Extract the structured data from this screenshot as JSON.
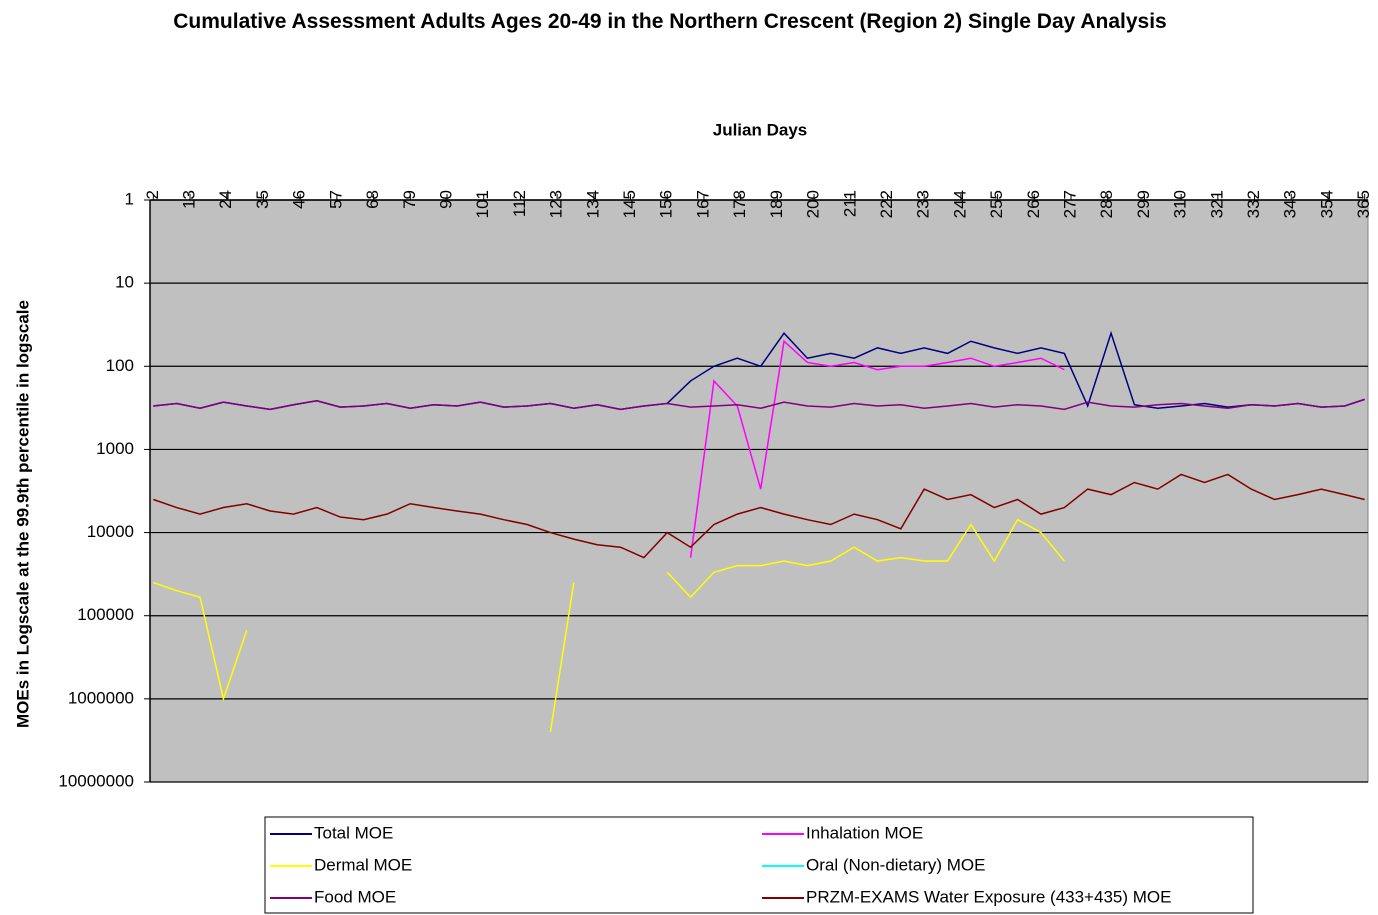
{
  "chart_data": {
    "type": "line",
    "title": "Cumulative Assessment Adults Ages 20-49 in the Northern Crescent (Region 2) Single Day Analysis",
    "x_label": "Julian Days",
    "y_label": "MOEs in Logscale at the 99.9th percentile in logscale",
    "log_scale": true,
    "inverted": true,
    "grid": true,
    "xlim": [
      1,
      366
    ],
    "xticks": [
      2,
      13,
      24,
      35,
      46,
      57,
      68,
      79,
      90,
      101,
      112,
      123,
      134,
      145,
      156,
      167,
      178,
      189,
      200,
      211,
      222,
      233,
      244,
      255,
      266,
      277,
      288,
      299,
      310,
      321,
      332,
      343,
      354,
      365
    ],
    "ylim": [
      1,
      10000000
    ],
    "yticks": [
      1,
      10,
      100,
      1000,
      10000,
      100000,
      1000000,
      10000000
    ],
    "x": [
      2,
      9,
      16,
      23,
      30,
      37,
      44,
      51,
      58,
      65,
      72,
      79,
      86,
      93,
      100,
      107,
      114,
      121,
      128,
      135,
      142,
      149,
      156,
      163,
      170,
      177,
      184,
      191,
      198,
      205,
      212,
      219,
      226,
      233,
      240,
      247,
      254,
      261,
      268,
      275,
      282,
      289,
      296,
      303,
      310,
      317,
      324,
      331,
      338,
      345,
      352,
      359,
      365
    ],
    "series": [
      {
        "name": "Total MOE",
        "color": "#000080",
        "values": [
          300,
          280,
          320,
          270,
          300,
          330,
          290,
          260,
          310,
          300,
          280,
          320,
          290,
          300,
          270,
          310,
          300,
          280,
          320,
          290,
          330,
          300,
          280,
          150,
          100,
          80,
          100,
          40,
          80,
          70,
          80,
          60,
          70,
          60,
          70,
          50,
          60,
          70,
          60,
          70,
          300,
          40,
          290,
          320,
          300,
          280,
          310,
          290,
          300,
          280,
          310,
          300,
          250
        ]
      },
      {
        "name": "Inhalation MOE",
        "color": "#ff00ff",
        "values": [
          null,
          null,
          null,
          null,
          null,
          null,
          null,
          null,
          null,
          null,
          null,
          null,
          null,
          null,
          null,
          null,
          null,
          null,
          null,
          null,
          null,
          null,
          null,
          20000,
          150,
          300,
          3000,
          50,
          90,
          100,
          90,
          110,
          100,
          100,
          90,
          80,
          100,
          90,
          80,
          110,
          null,
          null,
          null,
          null,
          null,
          null,
          null,
          null,
          null,
          null,
          null,
          null,
          null
        ]
      },
      {
        "name": "Dermal MOE",
        "color": "#ffff00",
        "values": [
          40000,
          50000,
          60000,
          1000000,
          150000,
          null,
          null,
          null,
          null,
          null,
          null,
          null,
          null,
          null,
          null,
          null,
          null,
          2500000,
          40000,
          null,
          null,
          null,
          30000,
          60000,
          30000,
          25000,
          25000,
          22000,
          25000,
          22000,
          15000,
          22000,
          20000,
          22000,
          22000,
          8000,
          22000,
          7000,
          10000,
          22000,
          null,
          null,
          null,
          null,
          null,
          null,
          null,
          null,
          null,
          null,
          null,
          null,
          null
        ]
      },
      {
        "name": "Oral (Non-dietary) MOE",
        "color": "#00ffff",
        "values": [
          null,
          null,
          null,
          null,
          null,
          null,
          null,
          null,
          null,
          null,
          null,
          null,
          null,
          null,
          null,
          null,
          null,
          null,
          null,
          null,
          null,
          null,
          null,
          null,
          null,
          null,
          null,
          null,
          null,
          null,
          null,
          null,
          null,
          null,
          null,
          null,
          null,
          null,
          null,
          null,
          null,
          null,
          null,
          null,
          null,
          null,
          null,
          null,
          null,
          null,
          null,
          null,
          null
        ]
      },
      {
        "name": "Food MOE",
        "color": "#800080",
        "values": [
          300,
          280,
          320,
          270,
          300,
          330,
          290,
          260,
          310,
          300,
          280,
          320,
          290,
          300,
          270,
          310,
          300,
          280,
          320,
          290,
          330,
          300,
          280,
          310,
          300,
          290,
          320,
          270,
          300,
          310,
          280,
          300,
          290,
          320,
          300,
          280,
          310,
          290,
          300,
          330,
          270,
          300,
          310,
          290,
          280,
          300,
          320,
          290,
          300,
          280,
          310,
          300,
          250
        ]
      },
      {
        "name": "PRZM-EXAMS Water Exposure (433+435) MOE",
        "color": "#800000",
        "values": [
          4000,
          5000,
          6000,
          5000,
          4500,
          5500,
          6000,
          5000,
          6500,
          7000,
          6000,
          4500,
          5000,
          5500,
          6000,
          7000,
          8000,
          10000,
          12000,
          14000,
          15000,
          20000,
          10000,
          15000,
          8000,
          6000,
          5000,
          6000,
          7000,
          8000,
          6000,
          7000,
          9000,
          3000,
          4000,
          3500,
          5000,
          4000,
          6000,
          5000,
          3000,
          3500,
          2500,
          3000,
          2000,
          2500,
          2000,
          3000,
          4000,
          3500,
          3000,
          3500,
          4000
        ]
      }
    ]
  }
}
